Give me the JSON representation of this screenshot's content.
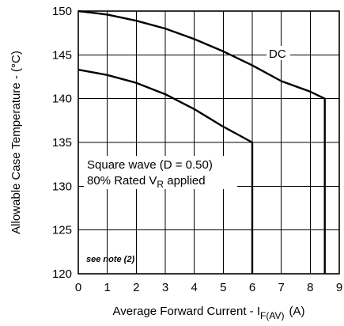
{
  "chart_data": {
    "type": "line",
    "xlabel_main": "Average Forward Current - I",
    "xlabel_sub": "F(AV)",
    "xlabel_unit": "(A)",
    "ylabel": "Allowable Case Temperature - (°C)",
    "xlim": [
      0,
      9
    ],
    "ylim": [
      120,
      150
    ],
    "xticks": [
      0,
      1,
      2,
      3,
      4,
      5,
      6,
      7,
      8,
      9
    ],
    "yticks": [
      120,
      125,
      130,
      135,
      140,
      145,
      150
    ],
    "grid": true,
    "series": [
      {
        "name": "DC",
        "x": [
          0,
          1,
          2,
          3,
          4,
          5,
          6,
          7,
          8,
          8.5,
          8.5
        ],
        "y": [
          150,
          149.6,
          148.9,
          148.0,
          146.8,
          145.4,
          143.8,
          142.0,
          140.8,
          140,
          120
        ]
      },
      {
        "name": "Square wave (D = 0.50) 80% Rated V_R applied",
        "x": [
          0,
          1,
          2,
          3,
          4,
          5,
          5.5,
          6,
          6
        ],
        "y": [
          143.3,
          142.7,
          141.8,
          140.5,
          138.8,
          136.8,
          135.9,
          135,
          120
        ]
      }
    ],
    "annotations": {
      "dc": "DC",
      "square_line1": "Square wave (D = 0.50)",
      "square_line2_main": "80% Rated V",
      "square_line2_sub": "R",
      "square_line2_tail": " applied",
      "note": "see note (2)"
    }
  }
}
